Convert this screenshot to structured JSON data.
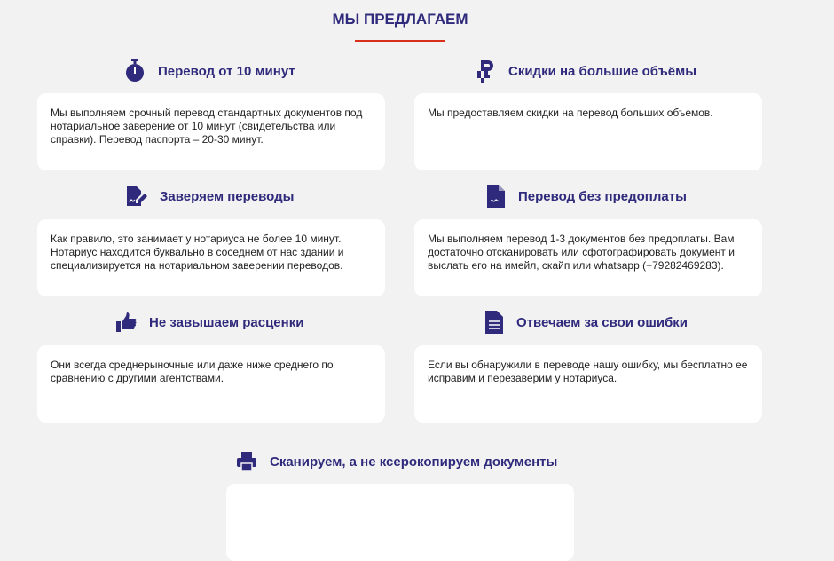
{
  "section_title": "МЫ ПРЕДЛАГАЕМ",
  "accent_color": "#d9301c",
  "brand_color": "#2f2a7c",
  "features": [
    {
      "icon": "stopwatch-icon",
      "title": "Перевод от 10 минут",
      "text": "Мы выполняем срочный перевод стандартных документов под нотариальное заверение от 10 минут (свидетельства или справки). Перевод паспорта – 20-30 минут."
    },
    {
      "icon": "ruble-icon",
      "title": "Скидки на большие объёмы",
      "text": "Мы предоставляем скидки на перевод больших объемов."
    },
    {
      "icon": "signed-document-icon",
      "title": "Заверяем переводы",
      "text": "Как правило, это занимает у нотариуса не более 10 минут. Нотариус находится буквально в соседнем от нас здании и специализируется на нотариальном заверении переводов."
    },
    {
      "icon": "contract-document-icon",
      "title": "Перевод без предоплаты",
      "text": "Мы выполняем перевод 1-3 документов без предоплаты. Вам достаточно отсканировать или сфотографировать документ и выслать его на имейл, скайп или whatsapp (+79282469283)."
    },
    {
      "icon": "thumbs-up-icon",
      "title": "Не завышаем расценки",
      "text": "Они всегда среднерыночные или даже ниже среднего по сравнению с другими агентствами."
    },
    {
      "icon": "document-lines-icon",
      "title": "Отвечаем за свои ошибки",
      "text": "Если вы обнаружили в переводе нашу ошибку, мы бесплатно ее исправим и перезаверим у нотариуса."
    },
    {
      "icon": "printer-icon",
      "title": "Сканируем, а не ксерокопируем документы",
      "text": ""
    }
  ]
}
